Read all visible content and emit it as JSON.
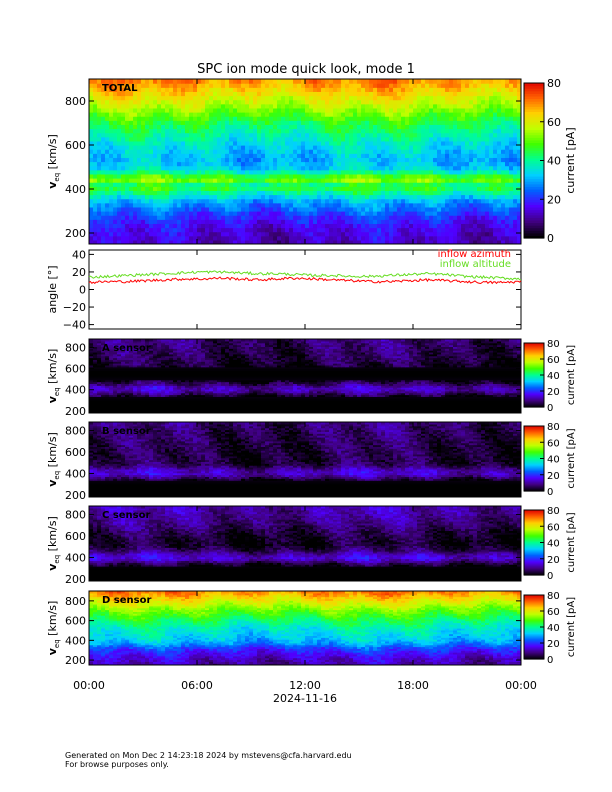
{
  "title": "SPC ion mode quick look, mode 1",
  "footer": {
    "generated": "Generated on Mon Dec  2 14:23:18 2024 by mstevens@cfa.harvard.edu",
    "purpose": "For browse purposes only."
  },
  "colors": {
    "inflow_azimuth": "#ff0000",
    "inflow_altitude": "#66dd22",
    "colorbar": [
      "#000000",
      "#400080",
      "#5000ff",
      "#0060ff",
      "#00d0ff",
      "#00ff90",
      "#40ff00",
      "#c0ff00",
      "#ffd000",
      "#ff6000",
      "#e00000"
    ]
  },
  "chart_data": [
    {
      "type": "heatmap",
      "panel_label": "TOTAL",
      "ylabel": "v",
      "ylabel_sub": "eq",
      "ylabel_unit": "[km/s]",
      "yticks": [
        "200",
        "400",
        "600",
        "800"
      ],
      "ylim": [
        150,
        900
      ],
      "colorbar_label": "current [pA]",
      "colorbar_ticks": [
        "0",
        "20",
        "40",
        "60",
        "80"
      ],
      "colorbar_range": [
        0,
        80
      ],
      "profile_vel": [
        150,
        200,
        250,
        290,
        320,
        340,
        380,
        410,
        430,
        450,
        460,
        480,
        500,
        540,
        600,
        700,
        800,
        900
      ],
      "profile_val": [
        12,
        14,
        17,
        22,
        26,
        28,
        38,
        46,
        40,
        60,
        46,
        38,
        32,
        30,
        34,
        44,
        58,
        70
      ],
      "background": "#00c8ff"
    },
    {
      "type": "line",
      "ylabel": "angle [°]",
      "yticks": [
        "40",
        "20",
        "0",
        "−20",
        "−40"
      ],
      "ylim": [
        -45,
        45
      ],
      "series": [
        {
          "name": "inflow azimuth",
          "values": [
            8,
            9,
            9,
            10,
            11,
            12,
            12,
            13,
            12,
            11,
            12,
            13,
            12,
            11,
            10,
            9,
            9,
            10,
            11,
            10,
            9,
            8,
            8,
            9
          ]
        },
        {
          "name": "inflow altitude",
          "values": [
            14,
            15,
            16,
            17,
            18,
            19,
            20,
            20,
            19,
            18,
            18,
            17,
            16,
            16,
            15,
            15,
            16,
            17,
            18,
            17,
            15,
            14,
            13,
            12
          ]
        }
      ]
    },
    {
      "type": "heatmap",
      "panel_label": "A sensor",
      "ylabel": "v",
      "ylabel_sub": "eq",
      "ylabel_unit": "[km/s]",
      "yticks": [
        "200",
        "400",
        "600",
        "800"
      ],
      "ylim": [
        180,
        880
      ],
      "colorbar_label": "current [pA]",
      "colorbar_ticks": [
        "0",
        "20",
        "40",
        "60",
        "80"
      ],
      "colorbar_range": [
        0,
        80
      ],
      "profile_vel": [
        180,
        300,
        340,
        370,
        400,
        430,
        460,
        490,
        530,
        580,
        640,
        720,
        800,
        880
      ],
      "profile_val": [
        0,
        0,
        2,
        7,
        12,
        11,
        6,
        2,
        0,
        0,
        3,
        5,
        6,
        7
      ],
      "background": "#000000"
    },
    {
      "type": "heatmap",
      "panel_label": "B sensor",
      "ylabel": "v",
      "ylabel_sub": "eq",
      "ylabel_unit": "[km/s]",
      "yticks": [
        "200",
        "400",
        "600",
        "800"
      ],
      "ylim": [
        180,
        880
      ],
      "colorbar_label": "current [pA]",
      "colorbar_ticks": [
        "0",
        "20",
        "40",
        "60",
        "80"
      ],
      "colorbar_range": [
        0,
        80
      ],
      "profile_vel": [
        180,
        300,
        340,
        370,
        400,
        430,
        460,
        480,
        520,
        600,
        700,
        800,
        880
      ],
      "profile_val": [
        0,
        0,
        2,
        8,
        13,
        12,
        8,
        5,
        4,
        4,
        5,
        6,
        7
      ],
      "background": "#000000"
    },
    {
      "type": "heatmap",
      "panel_label": "C sensor",
      "ylabel": "v",
      "ylabel_sub": "eq",
      "ylabel_unit": "[km/s]",
      "yticks": [
        "200",
        "400",
        "600",
        "800"
      ],
      "ylim": [
        180,
        880
      ],
      "colorbar_label": "current [pA]",
      "colorbar_ticks": [
        "0",
        "20",
        "40",
        "60",
        "80"
      ],
      "colorbar_range": [
        0,
        80
      ],
      "profile_vel": [
        180,
        300,
        340,
        370,
        400,
        430,
        460,
        490,
        530,
        580,
        650,
        720,
        800,
        880
      ],
      "profile_val": [
        0,
        0,
        3,
        10,
        14,
        12,
        7,
        4,
        2,
        3,
        5,
        8,
        10,
        11
      ],
      "background": "#000000"
    },
    {
      "type": "heatmap",
      "panel_label": "D sensor",
      "ylabel": "v",
      "ylabel_sub": "eq",
      "ylabel_unit": "[km/s]",
      "yticks": [
        "200",
        "400",
        "600",
        "800"
      ],
      "ylim": [
        150,
        900
      ],
      "colorbar_label": "current [pA]",
      "colorbar_ticks": [
        "0",
        "20",
        "40",
        "60",
        "80"
      ],
      "colorbar_range": [
        0,
        80
      ],
      "profile_vel": [
        150,
        200,
        250,
        290,
        330,
        370,
        420,
        470,
        520,
        600,
        700,
        800,
        900
      ],
      "profile_val": [
        10,
        12,
        15,
        18,
        22,
        28,
        32,
        34,
        36,
        42,
        50,
        60,
        70
      ],
      "background": "#00c8ff"
    }
  ],
  "x_axis": {
    "ticks": [
      "00:00",
      "06:00",
      "12:00",
      "18:00",
      "00:00"
    ],
    "date_label": "2024-11-16",
    "range_hours": [
      0,
      24
    ]
  }
}
